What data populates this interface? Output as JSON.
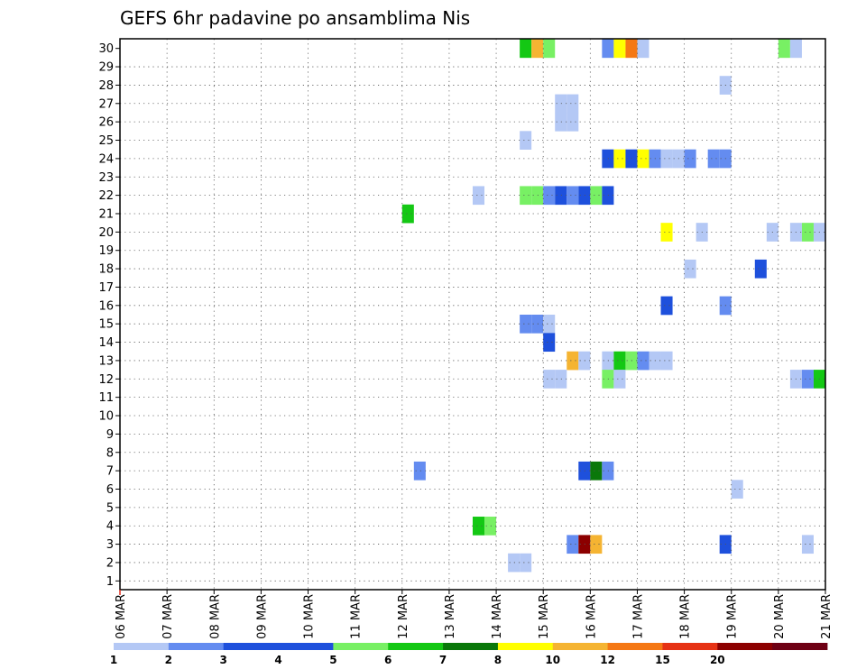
{
  "chart_data": {
    "type": "heatmap",
    "title": "GEFS 6hr padavine po ansamblima Nis",
    "xlabel": "",
    "ylabel": "",
    "x_ticks": [
      "06 MAR",
      "07 MAR",
      "08 MAR",
      "09 MAR",
      "10 MAR",
      "11 MAR",
      "12 MAR",
      "13 MAR",
      "14 MAR",
      "15 MAR",
      "16 MAR",
      "17 MAR",
      "18 MAR",
      "19 MAR",
      "20 MAR",
      "21 MAR"
    ],
    "x_range": [
      0,
      60
    ],
    "y_ticks": [
      "1",
      "2",
      "3",
      "4",
      "5",
      "6",
      "7",
      "8",
      "9",
      "10",
      "11",
      "12",
      "13",
      "14",
      "15",
      "16",
      "17",
      "18",
      "19",
      "20",
      "21",
      "22",
      "23",
      "24",
      "25",
      "26",
      "27",
      "28",
      "29",
      "30"
    ],
    "y_range": [
      0,
      30
    ],
    "grid": true,
    "legend": {
      "placement": "bottom",
      "labels": [
        "1",
        "2",
        "3",
        "4",
        "5",
        "6",
        "7",
        "8",
        "10",
        "12",
        "15",
        "20"
      ],
      "colors": [
        "#b4c8f5",
        "#648cf0",
        "#1e50dc",
        "#1e50dc",
        "#78f064",
        "#14c814",
        "#0a780a",
        "#ffff00",
        "#f5b432",
        "#f57814",
        "#e63214",
        "#8c0000",
        "#6e0014"
      ]
    },
    "cells": [
      {
        "t": 34,
        "m": 30,
        "c": "#14c814"
      },
      {
        "t": 35,
        "m": 30,
        "c": "#f5b432"
      },
      {
        "t": 36,
        "m": 30,
        "c": "#78f064"
      },
      {
        "t": 41,
        "m": 30,
        "c": "#648cf0"
      },
      {
        "t": 42,
        "m": 30,
        "c": "#ffff00"
      },
      {
        "t": 43,
        "m": 30,
        "c": "#f57814"
      },
      {
        "t": 44,
        "m": 30,
        "c": "#b4c8f5"
      },
      {
        "t": 56,
        "m": 30,
        "c": "#78f064"
      },
      {
        "t": 57,
        "m": 30,
        "c": "#b4c8f5"
      },
      {
        "t": 51,
        "m": 28,
        "c": "#b4c8f5"
      },
      {
        "t": 37,
        "m": 27,
        "c": "#b4c8f5"
      },
      {
        "t": 38,
        "m": 27,
        "c": "#b4c8f5"
      },
      {
        "t": 37,
        "m": 26,
        "c": "#b4c8f5"
      },
      {
        "t": 38,
        "m": 26,
        "c": "#b4c8f5"
      },
      {
        "t": 34,
        "m": 25,
        "c": "#b4c8f5"
      },
      {
        "t": 41,
        "m": 24,
        "c": "#1e50dc"
      },
      {
        "t": 42,
        "m": 24,
        "c": "#ffff00"
      },
      {
        "t": 43,
        "m": 24,
        "c": "#1e50dc"
      },
      {
        "t": 44,
        "m": 24,
        "c": "#ffff00"
      },
      {
        "t": 45,
        "m": 24,
        "c": "#648cf0"
      },
      {
        "t": 46,
        "m": 24,
        "c": "#b4c8f5"
      },
      {
        "t": 47,
        "m": 24,
        "c": "#b4c8f5"
      },
      {
        "t": 48,
        "m": 24,
        "c": "#648cf0"
      },
      {
        "t": 50,
        "m": 24,
        "c": "#648cf0"
      },
      {
        "t": 51,
        "m": 24,
        "c": "#648cf0"
      },
      {
        "t": 30,
        "m": 22,
        "c": "#b4c8f5"
      },
      {
        "t": 34,
        "m": 22,
        "c": "#78f064"
      },
      {
        "t": 35,
        "m": 22,
        "c": "#78f064"
      },
      {
        "t": 36,
        "m": 22,
        "c": "#648cf0"
      },
      {
        "t": 37,
        "m": 22,
        "c": "#1e50dc"
      },
      {
        "t": 38,
        "m": 22,
        "c": "#648cf0"
      },
      {
        "t": 39,
        "m": 22,
        "c": "#1e50dc"
      },
      {
        "t": 40,
        "m": 22,
        "c": "#78f064"
      },
      {
        "t": 41,
        "m": 22,
        "c": "#1e50dc"
      },
      {
        "t": 24,
        "m": 21,
        "c": "#14c814"
      },
      {
        "t": 46,
        "m": 20,
        "c": "#ffff00"
      },
      {
        "t": 49,
        "m": 20,
        "c": "#b4c8f5"
      },
      {
        "t": 55,
        "m": 20,
        "c": "#b4c8f5"
      },
      {
        "t": 57,
        "m": 20,
        "c": "#b4c8f5"
      },
      {
        "t": 58,
        "m": 20,
        "c": "#78f064"
      },
      {
        "t": 59,
        "m": 20,
        "c": "#b4c8f5"
      },
      {
        "t": 48,
        "m": 18,
        "c": "#b4c8f5"
      },
      {
        "t": 54,
        "m": 18,
        "c": "#1e50dc"
      },
      {
        "t": 46,
        "m": 16,
        "c": "#1e50dc"
      },
      {
        "t": 51,
        "m": 16,
        "c": "#648cf0"
      },
      {
        "t": 34,
        "m": 15,
        "c": "#648cf0"
      },
      {
        "t": 35,
        "m": 15,
        "c": "#648cf0"
      },
      {
        "t": 36,
        "m": 15,
        "c": "#b4c8f5"
      },
      {
        "t": 36,
        "m": 14,
        "c": "#1e50dc"
      },
      {
        "t": 38,
        "m": 13,
        "c": "#f5b432"
      },
      {
        "t": 39,
        "m": 13,
        "c": "#b4c8f5"
      },
      {
        "t": 41,
        "m": 13,
        "c": "#b4c8f5"
      },
      {
        "t": 42,
        "m": 13,
        "c": "#14c814"
      },
      {
        "t": 43,
        "m": 13,
        "c": "#78f064"
      },
      {
        "t": 44,
        "m": 13,
        "c": "#648cf0"
      },
      {
        "t": 45,
        "m": 13,
        "c": "#b4c8f5"
      },
      {
        "t": 46,
        "m": 13,
        "c": "#b4c8f5"
      },
      {
        "t": 36,
        "m": 12,
        "c": "#b4c8f5"
      },
      {
        "t": 37,
        "m": 12,
        "c": "#b4c8f5"
      },
      {
        "t": 41,
        "m": 12,
        "c": "#78f064"
      },
      {
        "t": 42,
        "m": 12,
        "c": "#b4c8f5"
      },
      {
        "t": 57,
        "m": 12,
        "c": "#b4c8f5"
      },
      {
        "t": 58,
        "m": 12,
        "c": "#648cf0"
      },
      {
        "t": 59,
        "m": 12,
        "c": "#14c814"
      },
      {
        "t": 25,
        "m": 7,
        "c": "#648cf0"
      },
      {
        "t": 39,
        "m": 7,
        "c": "#1e50dc"
      },
      {
        "t": 40,
        "m": 7,
        "c": "#0a780a"
      },
      {
        "t": 41,
        "m": 7,
        "c": "#648cf0"
      },
      {
        "t": 52,
        "m": 6,
        "c": "#b4c8f5"
      },
      {
        "t": 30,
        "m": 4,
        "c": "#14c814"
      },
      {
        "t": 31,
        "m": 4,
        "c": "#78f064"
      },
      {
        "t": 38,
        "m": 3,
        "c": "#648cf0"
      },
      {
        "t": 39,
        "m": 3,
        "c": "#8c0000"
      },
      {
        "t": 40,
        "m": 3,
        "c": "#f5b432"
      },
      {
        "t": 51,
        "m": 3,
        "c": "#1e50dc"
      },
      {
        "t": 58,
        "m": 3,
        "c": "#b4c8f5"
      },
      {
        "t": 33,
        "m": 2,
        "c": "#b4c8f5"
      },
      {
        "t": 34,
        "m": 2,
        "c": "#b4c8f5"
      }
    ]
  }
}
